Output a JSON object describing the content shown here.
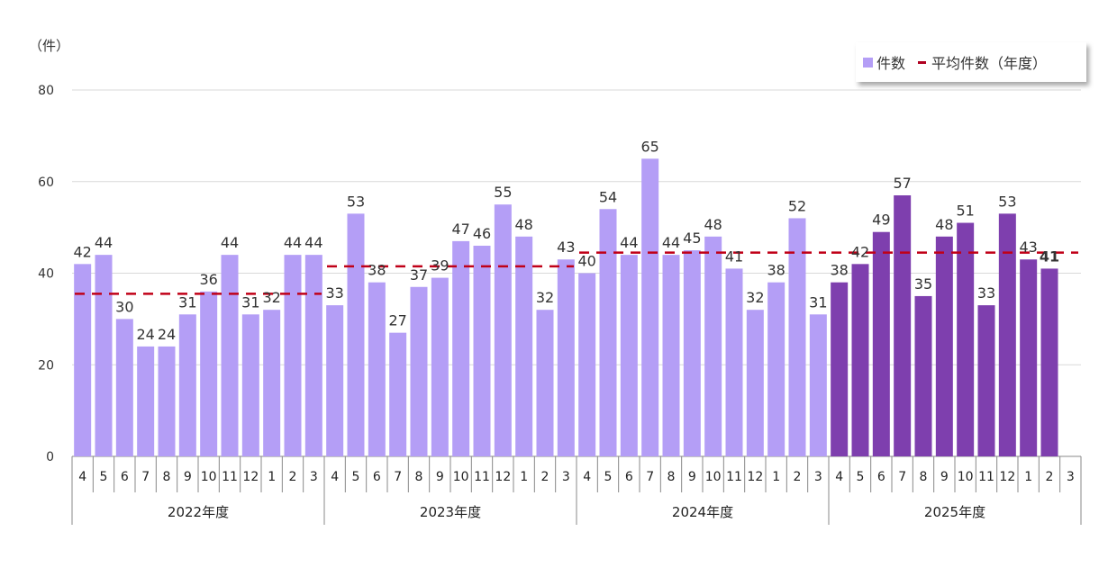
{
  "chart_data": {
    "type": "bar",
    "unit_label": "（件）",
    "legend": {
      "bars": "件数",
      "line": "平均件数（年度）",
      "placement": "top-right"
    },
    "ylim": [
      0,
      80
    ],
    "yticks": [
      0,
      20,
      40,
      60,
      80
    ],
    "grid": true,
    "month_labels": [
      "4",
      "5",
      "6",
      "7",
      "8",
      "9",
      "10",
      "11",
      "12",
      "1",
      "2",
      "3"
    ],
    "colors": {
      "past": "#b49ef6",
      "current": "#7e3fae",
      "average": "#c00018"
    },
    "years": [
      {
        "label": "2022年度",
        "values": [
          42,
          44,
          30,
          24,
          24,
          31,
          36,
          44,
          31,
          32,
          44,
          44
        ],
        "average": 35.5,
        "current": false
      },
      {
        "label": "2023年度",
        "values": [
          33,
          53,
          38,
          27,
          37,
          39,
          47,
          46,
          55,
          48,
          32,
          43
        ],
        "average": 41.5,
        "current": false
      },
      {
        "label": "2024年度",
        "values": [
          40,
          54,
          44,
          65,
          44,
          45,
          48,
          41,
          32,
          38,
          52,
          31
        ],
        "average": 44.5,
        "current": false
      },
      {
        "label": "2025年度",
        "values": [
          38,
          42,
          49,
          57,
          35,
          48,
          51,
          33,
          53,
          43,
          41,
          null
        ],
        "average": 44.5,
        "current": true
      }
    ]
  }
}
